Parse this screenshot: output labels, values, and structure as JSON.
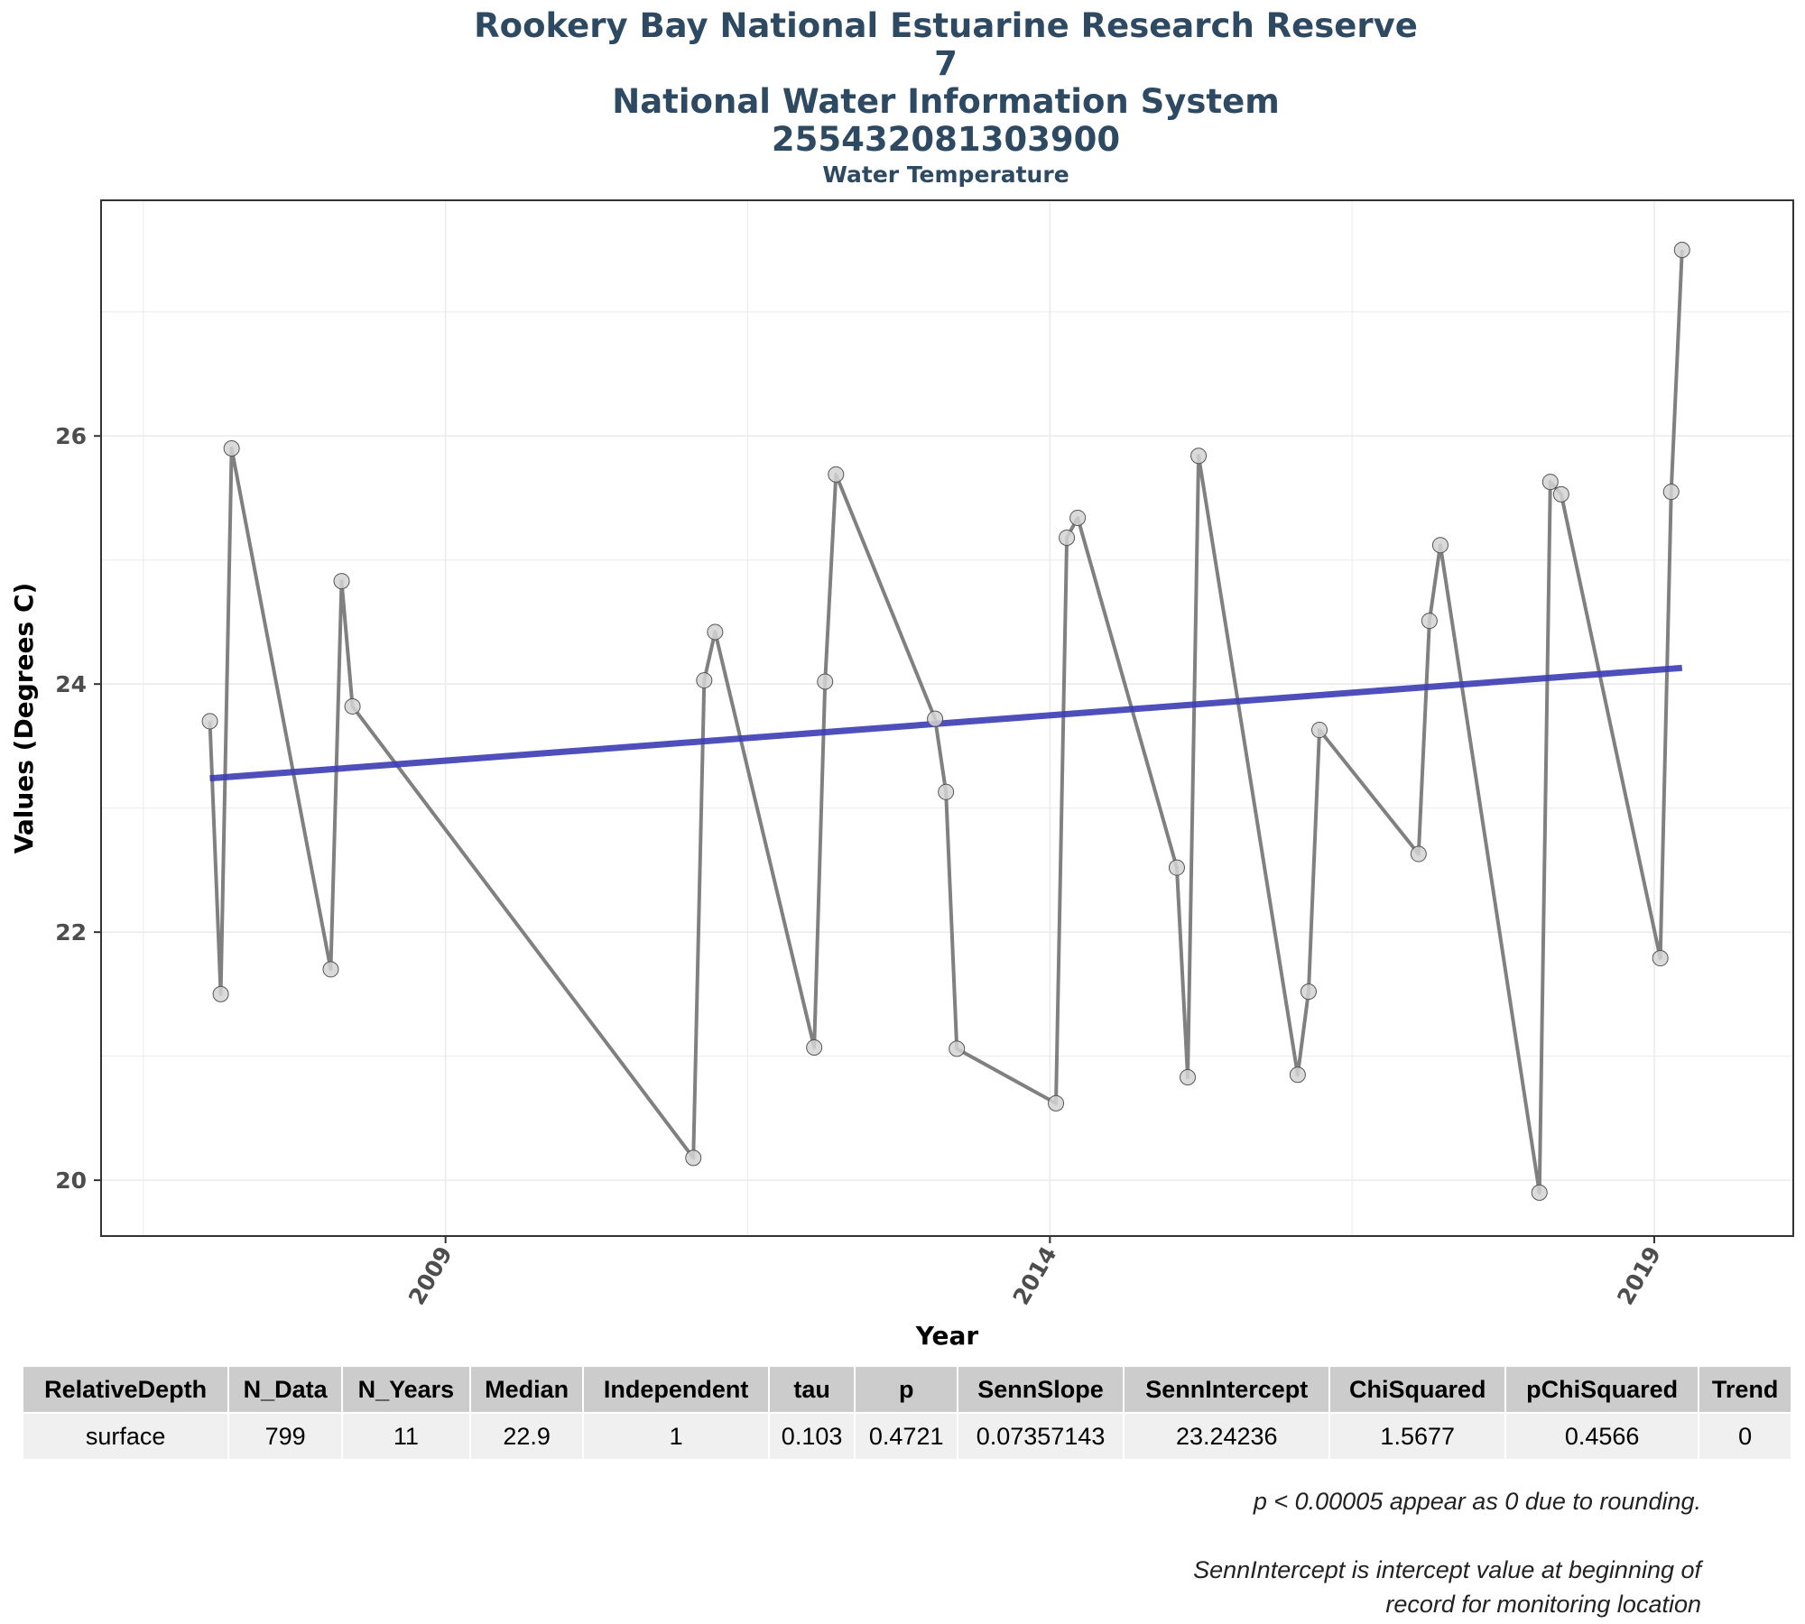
{
  "titles": {
    "line1": "Rookery Bay National Estuarine Research Reserve",
    "line2": "7",
    "line3": "National Water Information System",
    "line4": "255432081303900",
    "subtitle": "Water Temperature"
  },
  "chart_data": {
    "type": "line",
    "title": "Rookery Bay National Estuarine Research Reserve 7 National Water Information System 255432081303900",
    "subtitle": "Water Temperature",
    "xlabel": "Year",
    "ylabel": "Values (Degrees C)",
    "xlim": [
      2006.15,
      2020.15
    ],
    "ylim": [
      19.55,
      27.9
    ],
    "x_ticks": [
      2009,
      2014,
      2019
    ],
    "y_ticks": [
      20,
      22,
      24,
      26
    ],
    "grid": true,
    "series": [
      {
        "color": "#808080",
        "marker": "circle",
        "points": [
          [
            2007.05,
            23.7
          ],
          [
            2007.14,
            21.5
          ],
          [
            2007.23,
            25.9
          ],
          [
            2008.05,
            21.7
          ],
          [
            2008.14,
            24.83
          ],
          [
            2008.23,
            23.82
          ],
          [
            2011.05,
            20.18
          ],
          [
            2011.14,
            24.03
          ],
          [
            2011.23,
            24.42
          ],
          [
            2012.05,
            21.07
          ],
          [
            2012.14,
            24.02
          ],
          [
            2012.23,
            25.69
          ],
          [
            2013.05,
            23.72
          ],
          [
            2013.14,
            23.13
          ],
          [
            2013.23,
            21.06
          ],
          [
            2014.05,
            20.62
          ],
          [
            2014.14,
            25.18
          ],
          [
            2014.23,
            25.34
          ],
          [
            2015.05,
            22.52
          ],
          [
            2015.14,
            20.83
          ],
          [
            2015.23,
            25.84
          ],
          [
            2016.05,
            20.85
          ],
          [
            2016.14,
            21.52
          ],
          [
            2016.23,
            23.63
          ],
          [
            2017.05,
            22.63
          ],
          [
            2017.14,
            24.51
          ],
          [
            2017.23,
            25.12
          ],
          [
            2018.05,
            19.9
          ],
          [
            2018.14,
            25.63
          ],
          [
            2018.23,
            25.53
          ],
          [
            2019.05,
            21.79
          ],
          [
            2019.14,
            25.55
          ],
          [
            2019.23,
            27.5
          ]
        ]
      },
      {
        "color": "#3c3cb4",
        "style": "trend",
        "points": [
          [
            2007.05,
            23.24
          ],
          [
            2019.23,
            24.13
          ]
        ]
      }
    ]
  },
  "table": {
    "headers": [
      "RelativeDepth",
      "N_Data",
      "N_Years",
      "Median",
      "Independent",
      "tau",
      "p",
      "SennSlope",
      "SennIntercept",
      "ChiSquared",
      "pChiSquared",
      "Trend"
    ],
    "row": [
      "surface",
      "799",
      "11",
      "22.9",
      "1",
      "0.103",
      "0.4721",
      "0.07357143",
      "23.24236",
      "1.5677",
      "0.4566",
      "0"
    ]
  },
  "notes": {
    "rounding": "p < 0.00005 appear as 0 due to rounding.",
    "intercept_line1": "SennIntercept is intercept value at beginning of",
    "intercept_line2": "record for monitoring location"
  }
}
